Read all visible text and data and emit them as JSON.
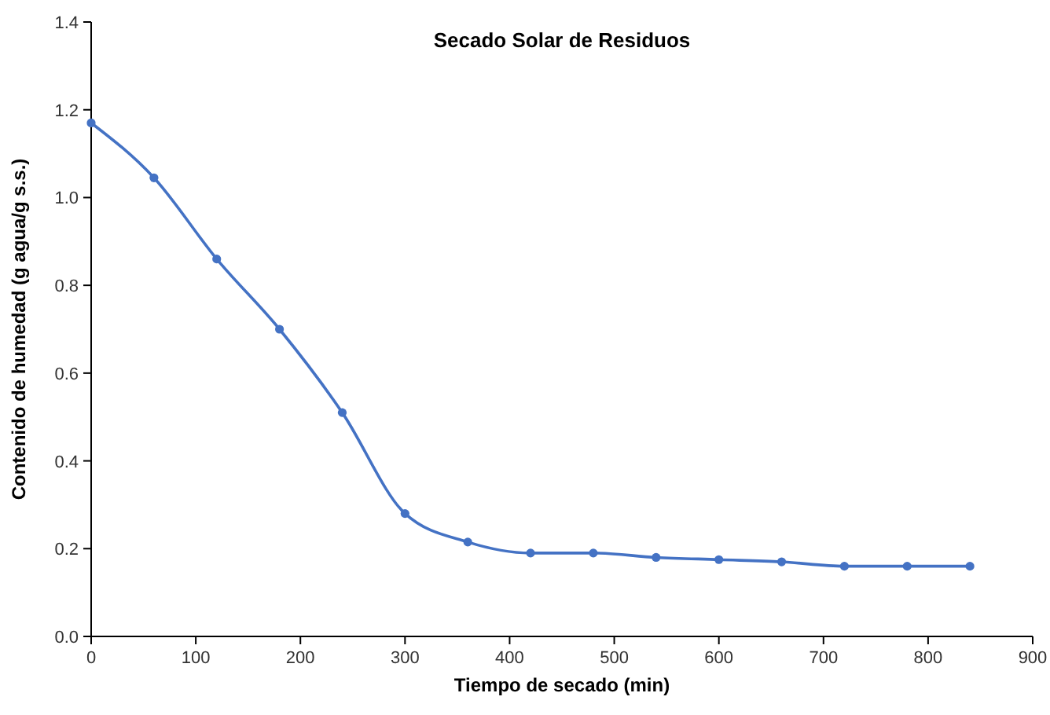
{
  "chart_data": {
    "type": "line",
    "title": "Secado Solar de Residuos",
    "xlabel": "Tiempo de secado (min)",
    "ylabel": "Contenido de humedad (g agua/g s.s.)",
    "x": [
      0,
      60,
      120,
      180,
      240,
      300,
      360,
      420,
      480,
      540,
      600,
      660,
      720,
      780,
      840
    ],
    "series": [
      {
        "color": "#4472c4",
        "values": [
          1.17,
          1.045,
          0.86,
          0.7,
          0.51,
          0.28,
          0.215,
          0.19,
          0.19,
          0.18,
          0.175,
          0.17,
          0.16,
          0.16,
          0.16
        ]
      }
    ],
    "xlim": [
      0,
      900
    ],
    "xticks": [
      0,
      100,
      200,
      300,
      400,
      500,
      600,
      700,
      800,
      900
    ],
    "ylim": [
      0,
      1.4
    ],
    "yticks": [
      {
        "value": 0,
        "label": "0.0"
      },
      {
        "value": 0.2,
        "label": "0.2"
      },
      {
        "value": 0.4,
        "label": "0.4"
      },
      {
        "value": 0.6,
        "label": "0.6"
      },
      {
        "value": 0.8,
        "label": "0.8"
      },
      {
        "value": 1,
        "label": "1.0"
      },
      {
        "value": 1.2,
        "label": "1.2"
      },
      {
        "value": 1.4,
        "label": "1.4"
      }
    ],
    "grid": false,
    "marker": "circle",
    "line_style": "solid"
  }
}
